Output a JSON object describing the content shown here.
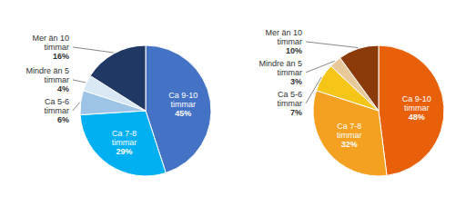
{
  "chart_data": [
    {
      "type": "pie",
      "categories": [
        "Ca 9-10\ntimmar",
        "Ca 7-8\ntimmar",
        "Ca 5-6\ntimmar",
        "Mindre än 5\ntimmar",
        "Mer än 10\ntimmar"
      ],
      "values": [
        45,
        29,
        6,
        4,
        16
      ],
      "value_labels": [
        "45%",
        "29%",
        "6%",
        "4%",
        "16%"
      ],
      "colors": [
        "#4472C4",
        "#00B0F0",
        "#9DC3E6",
        "#D9E8F5",
        "#1F3864"
      ],
      "data_labels": true
    },
    {
      "type": "pie",
      "categories": [
        "Ca 9-10\ntimmar",
        "Ca 7-8\ntimmar",
        "Ca 5-6\ntimmar",
        "Mindre än 5\ntimmar",
        "Mer än 10\ntimmar"
      ],
      "values": [
        48,
        32,
        7,
        3,
        10
      ],
      "value_labels": [
        "48%",
        "32%",
        "7%",
        "3%",
        "10%"
      ],
      "colors": [
        "#E8610A",
        "#F4A020",
        "#F5C518",
        "#E8C99A",
        "#8B3A0A"
      ],
      "data_labels": true
    }
  ]
}
